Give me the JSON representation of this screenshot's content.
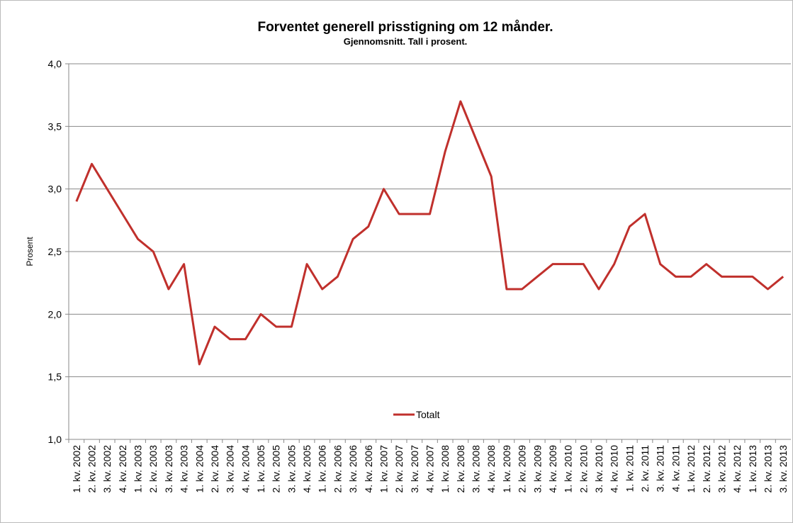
{
  "chart_data": {
    "type": "line",
    "title": "Forventet generell prisstigning om 12 månder.",
    "subtitle": "Gjennomsnitt.  Tall i prosent.",
    "y_label": "Prosent",
    "categories": [
      "1. kv. 2002",
      "2. kv. 2002",
      "3. kv. 2002",
      "4. kv. 2002",
      "1. kv. 2003",
      "2. kv. 2003",
      "3. kv. 2003",
      "4. kv. 2003",
      "1. kv. 2004",
      "2. kv. 2004",
      "3. kv. 2004",
      "4. kv. 2004",
      "1. kv. 2005",
      "2. kv. 2005",
      "3. kv. 2005",
      "4. kv. 2005",
      "1. kv. 2006",
      "2. kv. 2006",
      "3. kv. 2006",
      "4. kv. 2006",
      "1. kv. 2007",
      "2. kv. 2007",
      "3. kv. 2007",
      "4. kv. 2007",
      "1. kv. 2008",
      "2. kv. 2008",
      "3. kv. 2008",
      "4. kv. 2008",
      "1. kv. 2009",
      "2. kv. 2009",
      "3. kv. 2009",
      "4. kv. 2009",
      "1. kv. 2010",
      "2. kv. 2010",
      "3. kv. 2010",
      "4. kv. 2010",
      "1. kv. 2011",
      "2. kv. 2011",
      "3. kv. 2011",
      "4. kv. 2011",
      "1. kv. 2012",
      "2. kv. 2012",
      "3. kv. 2012",
      "4. kv. 2012",
      "1. kv. 2013",
      "2. kv. 2013",
      "3. kv. 2013"
    ],
    "series": [
      {
        "name": "Totalt",
        "color": "#c0302c",
        "values": [
          2.9,
          3.2,
          3.0,
          2.8,
          2.6,
          2.5,
          2.2,
          2.4,
          1.6,
          1.9,
          1.8,
          1.8,
          2.0,
          1.9,
          1.9,
          2.4,
          2.2,
          2.3,
          2.6,
          2.7,
          3.0,
          2.8,
          2.8,
          2.8,
          3.3,
          3.7,
          3.4,
          3.1,
          2.2,
          2.2,
          2.3,
          2.4,
          2.4,
          2.4,
          2.2,
          2.4,
          2.7,
          2.8,
          2.4,
          2.3,
          2.3,
          2.4,
          2.3,
          2.3,
          2.3,
          2.2,
          2.3
        ]
      }
    ],
    "ylim": [
      1,
      4
    ],
    "yticks": [
      {
        "value": 1,
        "label": "1,0"
      },
      {
        "value": 1.5,
        "label": "1,5"
      },
      {
        "value": 2,
        "label": "2,0"
      },
      {
        "value": 2.5,
        "label": "2,5"
      },
      {
        "value": 3,
        "label": "3,0"
      },
      {
        "value": 3.5,
        "label": "3,5"
      },
      {
        "value": 4,
        "label": "4,0"
      }
    ],
    "grid": true,
    "legend": "bottom"
  }
}
